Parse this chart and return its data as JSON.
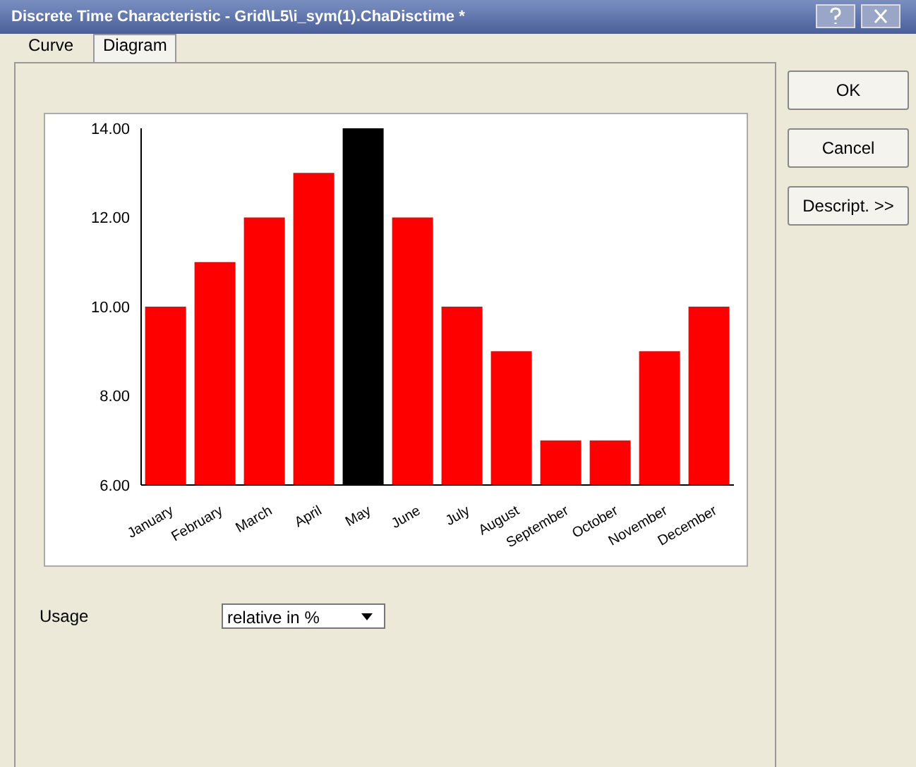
{
  "chart_data": {
    "type": "bar",
    "title": "Discrete Time Characteristic - Grid\\L5\\i_sym(1).ChaDisctime *",
    "categories": [
      "January",
      "February",
      "March",
      "April",
      "May",
      "June",
      "July",
      "August",
      "September",
      "October",
      "November",
      "December"
    ],
    "values": [
      10,
      11,
      12,
      13,
      14,
      12,
      10,
      9,
      7,
      7,
      9,
      10
    ],
    "colors": [
      "#ff0000",
      "#ff0000",
      "#ff0000",
      "#ff0000",
      "#000000",
      "#ff0000",
      "#ff0000",
      "#ff0000",
      "#ff0000",
      "#ff0000",
      "#ff0000",
      "#ff0000"
    ],
    "ylim": [
      6,
      14
    ],
    "yticks": [
      {
        "value": 6,
        "label": "6.00"
      },
      {
        "value": 8,
        "label": "8.00"
      },
      {
        "value": 10,
        "label": "10.00"
      },
      {
        "value": 12,
        "label": "12.00"
      },
      {
        "value": 14,
        "label": "14.00"
      }
    ],
    "annotations": [
      "Curve",
      "Diagram",
      "OK",
      "Cancel",
      "Descript. >>",
      "Usage",
      "relative in %"
    ]
  }
}
